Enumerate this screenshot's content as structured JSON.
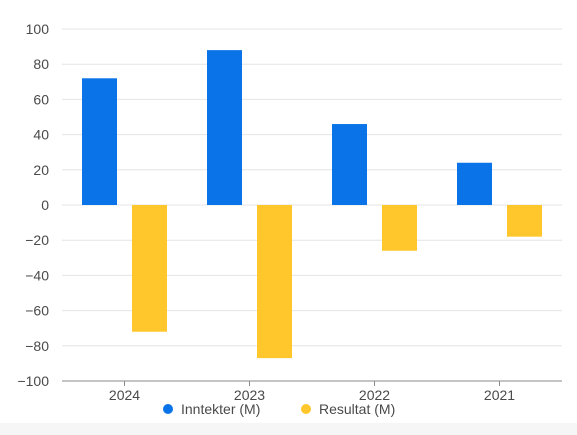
{
  "chart_data": {
    "type": "bar",
    "title": "",
    "xlabel": "",
    "ylabel": "",
    "categories": [
      "2024",
      "2023",
      "2022",
      "2021"
    ],
    "series": [
      {
        "name": "Inntekter (M)",
        "color": "#0a73e8",
        "values": [
          72,
          88,
          46,
          24
        ]
      },
      {
        "name": "Resultat (M)",
        "color": "#ffc72c",
        "values": [
          -72,
          -87,
          -26,
          -18
        ]
      }
    ],
    "ylim": [
      -100,
      100
    ],
    "yticks": [
      100,
      80,
      60,
      40,
      20,
      0,
      -20,
      -40,
      -60,
      -80,
      -100
    ],
    "ytick_labels": [
      "100",
      "80",
      "60",
      "40",
      "20",
      "0",
      "−20",
      "−40",
      "−60",
      "−80",
      "−100"
    ],
    "grid": true,
    "legend": "bottom-center"
  }
}
